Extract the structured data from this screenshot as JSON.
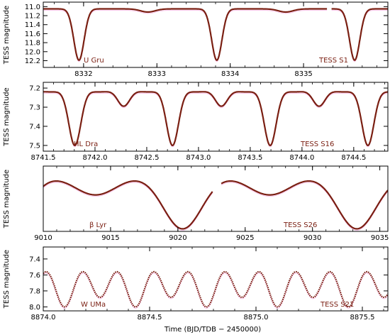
{
  "figure": {
    "xlabel": "Time   (BJD/TDB − 2450000)",
    "colors": {
      "curve": "#7a1f12",
      "trace": "#f07ad0",
      "frame": "#000000"
    }
  },
  "chart_data": [
    {
      "type": "line",
      "star": "U Gru",
      "sector": "TESS S1",
      "ylabel": "TESS magnitude",
      "xlim": [
        8331.45,
        8336.15
      ],
      "ylim": [
        12.35,
        10.9
      ],
      "invert_y": true,
      "xticks": [
        8332,
        8333,
        8334,
        8335
      ],
      "xtick_labels": [
        "8332",
        "8333",
        "8334",
        "8335"
      ],
      "yticks": [
        11.0,
        11.2,
        11.4,
        11.6,
        11.8,
        12.0,
        12.2
      ],
      "ytick_labels": [
        "11.0",
        "11.2",
        "11.4",
        "11.6",
        "11.8",
        "12.0",
        "12.2"
      ],
      "xtick_position": "bottom",
      "model": {
        "base": 11.05,
        "primary": {
          "t0": 8331.937,
          "period": 1.88,
          "depth": 1.14,
          "width": 0.07
        },
        "secondary": {
          "t0": 8332.877,
          "period": 1.88,
          "depth": 0.07,
          "width": 0.1
        },
        "ellipsoidal_amp": 0
      },
      "gaps": [
        [
          8335.32,
          8335.38
        ]
      ],
      "series": [
        {
          "values": [
            [
              8331.45,
              11.05
            ],
            [
              8331.937,
              12.19
            ],
            [
              8332.877,
              11.12
            ],
            [
              8333.817,
              12.19
            ],
            [
              8334.757,
              11.12
            ],
            [
              8335.697,
              12.19
            ],
            [
              8336.15,
              11.05
            ]
          ]
        }
      ]
    },
    {
      "type": "line",
      "star": "HL Dra",
      "sector": "TESS S16",
      "ylabel": "TESS magnitude",
      "xlim": [
        8741.5,
        8744.83
      ],
      "ylim": [
        7.53,
        7.17
      ],
      "invert_y": true,
      "xticks": [
        8741.5,
        8742.0,
        8742.5,
        8743.0,
        8743.5,
        8744.0,
        8744.5
      ],
      "xtick_labels": [
        "8741.5",
        "8742.0",
        "8742.5",
        "8743.0",
        "8743.5",
        "8744.0",
        "8744.5"
      ],
      "yticks": [
        7.2,
        7.3,
        7.4,
        7.5
      ],
      "ytick_labels": [
        "7.2",
        "7.3",
        "7.4",
        "7.5"
      ],
      "xtick_position": "bottom",
      "model": {
        "base": 7.21,
        "primary": {
          "t0": 8741.805,
          "period": 0.944,
          "depth": 0.29,
          "width": 0.058
        },
        "secondary": {
          "t0": 8742.277,
          "period": 0.944,
          "depth": 0.085,
          "width": 0.058
        },
        "ellipsoidal_amp": 0.01
      },
      "gaps": [],
      "series": [
        {
          "values": [
            [
              8741.5,
              7.22
            ],
            [
              8741.805,
              7.5
            ],
            [
              8742.04,
              7.21
            ],
            [
              8742.277,
              7.295
            ],
            [
              8742.749,
              7.5
            ],
            [
              8743.221,
              7.295
            ],
            [
              8743.693,
              7.5
            ],
            [
              8744.165,
              7.295
            ],
            [
              8744.637,
              7.5
            ],
            [
              8744.83,
              7.21
            ]
          ]
        }
      ]
    },
    {
      "type": "line",
      "star": "β Lyr",
      "sector": "TESS S26",
      "ylabel": "TESS magnitude",
      "xlim": [
        9010.0,
        9035.6
      ],
      "ylim": [
        3.75,
        2.98
      ],
      "invert_y": true,
      "xticks": [
        9010,
        9015,
        9020,
        9025,
        9030,
        9035
      ],
      "xtick_labels": [
        "9010",
        "9015",
        "9020",
        "9025",
        "9030",
        "9035"
      ],
      "yticks": [],
      "ytick_labels": [],
      "xtick_position": "bottom",
      "model": {
        "base": 3.04,
        "primary": {
          "t0": 9020.35,
          "period": 12.94,
          "depth": 0.68,
          "width": 1.45
        },
        "secondary": {
          "t0": 9013.88,
          "period": 12.94,
          "depth": 0.28,
          "width": 1.6
        },
        "ellipsoidal_amp": 0.03
      },
      "gaps": [
        [
          9022.6,
          9023.2
        ]
      ],
      "series": [
        {
          "values": [
            [
              9010.0,
              3.05
            ],
            [
              9013.88,
              3.33
            ],
            [
              9017.1,
              3.04
            ],
            [
              9020.35,
              3.72
            ],
            [
              9022.6,
              3.08
            ],
            [
              9026.82,
              3.33
            ],
            [
              9030.0,
              3.04
            ],
            [
              9033.29,
              3.72
            ],
            [
              9035.6,
              3.08
            ]
          ]
        }
      ]
    },
    {
      "type": "line",
      "star": "W UMa",
      "sector": "TESS S21",
      "ylabel": "TESS magnitude",
      "xlim": [
        8874.0,
        8875.62
      ],
      "ylim": [
        8.05,
        7.25
      ],
      "invert_y": true,
      "xticks": [
        8874.0,
        8874.5,
        8875.0,
        8875.5
      ],
      "xtick_labels": [
        "8874.0",
        "8874.5",
        "8875.0",
        "8875.5"
      ],
      "yticks": [
        7.4,
        7.6,
        7.8,
        8.0
      ],
      "ytick_labels": [
        "7.4",
        "7.6",
        "7.8",
        "8.0"
      ],
      "xtick_position": "bottom",
      "model": {
        "base": 7.35,
        "primary": {
          "t0": 8874.1,
          "period": 0.3336,
          "depth": 0.65,
          "width": 0.045
        },
        "secondary": {
          "t0": 8874.2668,
          "period": 0.3336,
          "depth": 0.53,
          "width": 0.045
        },
        "ellipsoidal_amp": 0
      },
      "gaps": [],
      "series": [
        {
          "values": [
            [
              8874.0,
              7.36
            ],
            [
              8874.1,
              8.0
            ],
            [
              8874.183,
              7.35
            ],
            [
              8874.267,
              7.88
            ],
            [
              8874.434,
              8.0
            ],
            [
              8874.6,
              7.88
            ],
            [
              8874.767,
              8.0
            ],
            [
              8874.934,
              7.88
            ],
            [
              8875.101,
              8.0
            ],
            [
              8875.268,
              7.88
            ],
            [
              8875.435,
              8.0
            ],
            [
              8875.6,
              7.88
            ]
          ]
        }
      ]
    }
  ]
}
